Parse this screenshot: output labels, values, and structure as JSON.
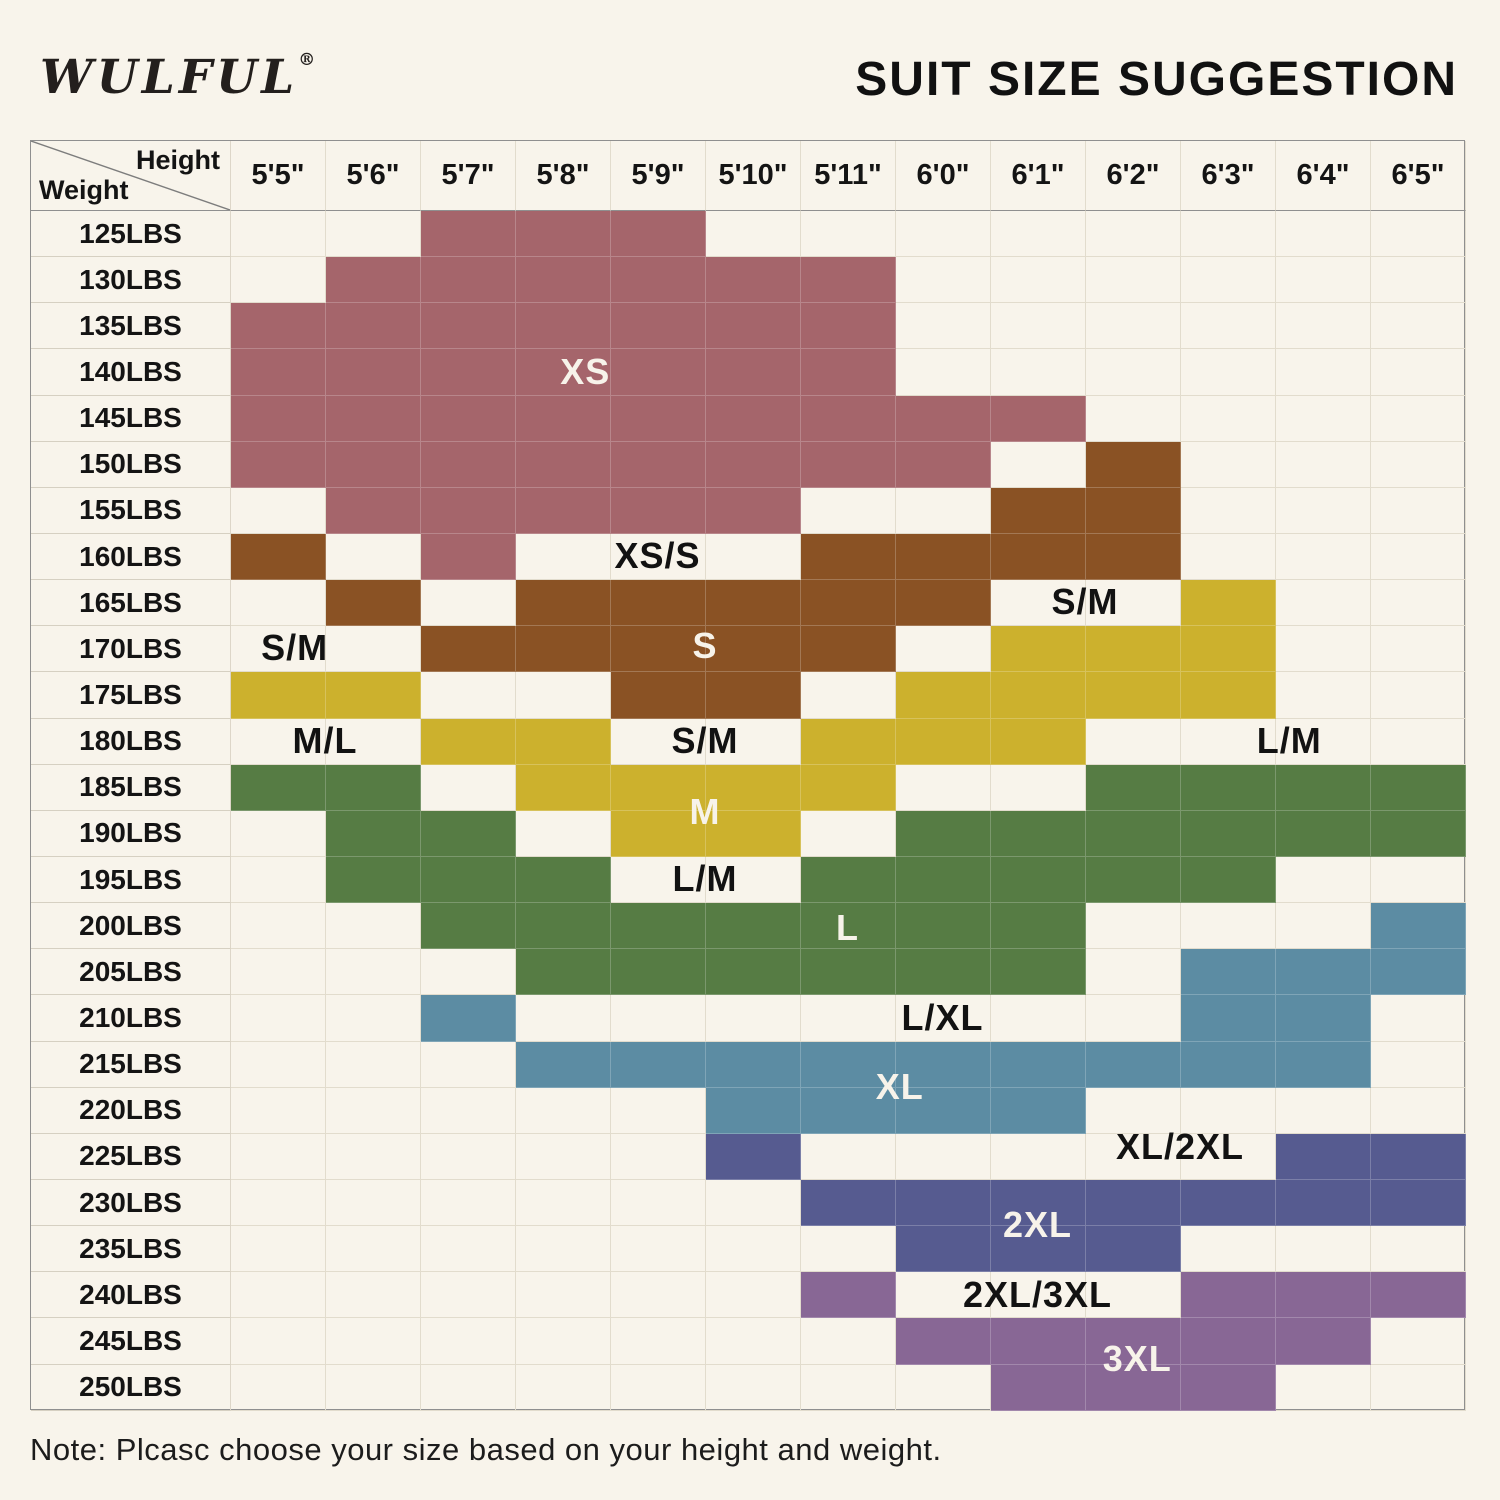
{
  "header": {
    "logo": "WULFUL",
    "logo_mark": "®",
    "title": "SUIT SIZE SUGGESTION"
  },
  "note": "Note: Plcasc choose your size based on your height and weight.",
  "colors": {
    "background": "#f8f4eb",
    "XS": "#a5656b",
    "S": "#8a5224",
    "M": "#ccb12d",
    "L": "#567c44",
    "XL": "#5c8ca3",
    "2XL": "#565b90",
    "3XL": "#886795",
    "grid_line": "#e2dccd",
    "outer_border": "#8f8f8f",
    "label_dark": "#121212",
    "label_light": "#f7f3ea"
  },
  "chart_data": {
    "type": "heatmap",
    "title": "SUIT SIZE SUGGESTION",
    "corner": {
      "top_label": "Height",
      "bottom_label": "Weight"
    },
    "heights": [
      "5'5\"",
      "5'6\"",
      "5'7\"",
      "5'8\"",
      "5'9\"",
      "5'10\"",
      "5'11\"",
      "6'0\"",
      "6'1\"",
      "6'2\"",
      "6'3\"",
      "6'4\"",
      "6'5\""
    ],
    "sizes": [
      "XS",
      "S",
      "M",
      "L",
      "XL",
      "2XL",
      "3XL"
    ],
    "rows": [
      {
        "weight": "125LBS",
        "cells": [
          "",
          "",
          "XS",
          "XS",
          "XS",
          "",
          "",
          "",
          "",
          "",
          "",
          "",
          ""
        ]
      },
      {
        "weight": "130LBS",
        "cells": [
          "",
          "XS",
          "XS",
          "XS",
          "XS",
          "XS",
          "XS",
          "",
          "",
          "",
          "",
          "",
          ""
        ]
      },
      {
        "weight": "135LBS",
        "cells": [
          "XS",
          "XS",
          "XS",
          "XS",
          "XS",
          "XS",
          "XS",
          "",
          "",
          "",
          "",
          "",
          ""
        ]
      },
      {
        "weight": "140LBS",
        "cells": [
          "XS",
          "XS",
          "XS",
          "XS",
          "XS",
          "XS",
          "XS",
          "",
          "",
          "",
          "",
          "",
          ""
        ]
      },
      {
        "weight": "145LBS",
        "cells": [
          "XS",
          "XS",
          "XS",
          "XS",
          "XS",
          "XS",
          "XS",
          "XS",
          "XS",
          "",
          "",
          "",
          ""
        ]
      },
      {
        "weight": "150LBS",
        "cells": [
          "XS",
          "XS",
          "XS",
          "XS",
          "XS",
          "XS",
          "XS",
          "XS",
          "",
          "S",
          "",
          "",
          ""
        ]
      },
      {
        "weight": "155LBS",
        "cells": [
          "",
          "XS",
          "XS",
          "XS",
          "XS",
          "XS",
          "",
          "",
          "S",
          "S",
          "",
          "",
          ""
        ]
      },
      {
        "weight": "160LBS",
        "cells": [
          "S",
          "",
          "XS",
          "",
          "",
          "",
          "S",
          "S",
          "S",
          "S",
          "",
          "",
          ""
        ]
      },
      {
        "weight": "165LBS",
        "cells": [
          "",
          "S",
          "",
          "S",
          "S",
          "S",
          "S",
          "S",
          "",
          "",
          "M",
          "",
          ""
        ]
      },
      {
        "weight": "170LBS",
        "cells": [
          "",
          "",
          "S",
          "S",
          "S",
          "S",
          "S",
          "",
          "M",
          "M",
          "M",
          "",
          ""
        ]
      },
      {
        "weight": "175LBS",
        "cells": [
          "M",
          "M",
          "",
          "",
          "S",
          "S",
          "",
          "M",
          "M",
          "M",
          "M",
          "",
          ""
        ]
      },
      {
        "weight": "180LBS",
        "cells": [
          "",
          "",
          "M",
          "M",
          "",
          "",
          "M",
          "M",
          "M",
          "",
          "",
          "",
          ""
        ]
      },
      {
        "weight": "185LBS",
        "cells": [
          "L",
          "L",
          "",
          "M",
          "M",
          "M",
          "M",
          "",
          "",
          "L",
          "L",
          "L",
          "L"
        ]
      },
      {
        "weight": "190LBS",
        "cells": [
          "",
          "L",
          "L",
          "",
          "M",
          "M",
          "",
          "L",
          "L",
          "L",
          "L",
          "L",
          "L"
        ]
      },
      {
        "weight": "195LBS",
        "cells": [
          "",
          "L",
          "L",
          "L",
          "",
          "",
          "L",
          "L",
          "L",
          "L",
          "L",
          "",
          ""
        ]
      },
      {
        "weight": "200LBS",
        "cells": [
          "",
          "",
          "L",
          "L",
          "L",
          "L",
          "L",
          "L",
          "L",
          "",
          "",
          "",
          "XL"
        ]
      },
      {
        "weight": "205LBS",
        "cells": [
          "",
          "",
          "",
          "L",
          "L",
          "L",
          "L",
          "L",
          "L",
          "",
          "XL",
          "XL",
          "XL"
        ]
      },
      {
        "weight": "210LBS",
        "cells": [
          "",
          "",
          "XL",
          "",
          "",
          "",
          "",
          "",
          "",
          "",
          "XL",
          "XL",
          ""
        ]
      },
      {
        "weight": "215LBS",
        "cells": [
          "",
          "",
          "",
          "XL",
          "XL",
          "XL",
          "XL",
          "XL",
          "XL",
          "XL",
          "XL",
          "XL",
          ""
        ]
      },
      {
        "weight": "220LBS",
        "cells": [
          "",
          "",
          "",
          "",
          "",
          "XL",
          "XL",
          "XL",
          "XL",
          "",
          "",
          "",
          ""
        ]
      },
      {
        "weight": "225LBS",
        "cells": [
          "",
          "",
          "",
          "",
          "",
          "2XL",
          "",
          "",
          "",
          "",
          "",
          "2XL",
          "2XL"
        ]
      },
      {
        "weight": "230LBS",
        "cells": [
          "",
          "",
          "",
          "",
          "",
          "",
          "2XL",
          "2XL",
          "2XL",
          "2XL",
          "2XL",
          "2XL",
          "2XL"
        ]
      },
      {
        "weight": "235LBS",
        "cells": [
          "",
          "",
          "",
          "",
          "",
          "",
          "",
          "2XL",
          "2XL",
          "2XL",
          "",
          "",
          ""
        ]
      },
      {
        "weight": "240LBS",
        "cells": [
          "",
          "",
          "",
          "",
          "",
          "",
          "3XL",
          "",
          "",
          "",
          "3XL",
          "3XL",
          "3XL"
        ]
      },
      {
        "weight": "245LBS",
        "cells": [
          "",
          "",
          "",
          "",
          "",
          "",
          "",
          "3XL",
          "3XL",
          "3XL",
          "3XL",
          "3XL",
          ""
        ]
      },
      {
        "weight": "250LBS",
        "cells": [
          "",
          "",
          "",
          "",
          "",
          "",
          "",
          "",
          "3XL",
          "3XL",
          "3XL",
          "",
          ""
        ]
      }
    ],
    "annotations": [
      {
        "text": "XS",
        "tone": "light",
        "col": 3.74,
        "row": 3.5
      },
      {
        "text": "XS/S",
        "tone": "dark",
        "col": 4.5,
        "row": 7.5
      },
      {
        "text": "S/M",
        "tone": "dark",
        "col": 9.0,
        "row": 8.5
      },
      {
        "text": "S",
        "tone": "light",
        "col": 5.0,
        "row": 9.45
      },
      {
        "text": "S/M",
        "tone": "dark",
        "col": 0.68,
        "row": 9.5
      },
      {
        "text": "M/L",
        "tone": "dark",
        "col": 1.0,
        "row": 11.5
      },
      {
        "text": "S/M",
        "tone": "dark",
        "col": 5.0,
        "row": 11.5
      },
      {
        "text": "L/M",
        "tone": "dark",
        "col": 11.15,
        "row": 11.5
      },
      {
        "text": "M",
        "tone": "light",
        "col": 5.0,
        "row": 13.05
      },
      {
        "text": "L/M",
        "tone": "dark",
        "col": 5.0,
        "row": 14.5
      },
      {
        "text": "L",
        "tone": "light",
        "col": 6.5,
        "row": 15.55
      },
      {
        "text": "L/XL",
        "tone": "dark",
        "col": 7.5,
        "row": 17.5
      },
      {
        "text": "XL",
        "tone": "light",
        "col": 7.05,
        "row": 19.0
      },
      {
        "text": "XL/2XL",
        "tone": "dark",
        "col": 10.0,
        "row": 20.3
      },
      {
        "text": "2XL",
        "tone": "light",
        "col": 8.5,
        "row": 22.0
      },
      {
        "text": "2XL/3XL",
        "tone": "dark",
        "col": 8.5,
        "row": 23.5
      },
      {
        "text": "3XL",
        "tone": "light",
        "col": 9.55,
        "row": 24.9
      }
    ]
  }
}
